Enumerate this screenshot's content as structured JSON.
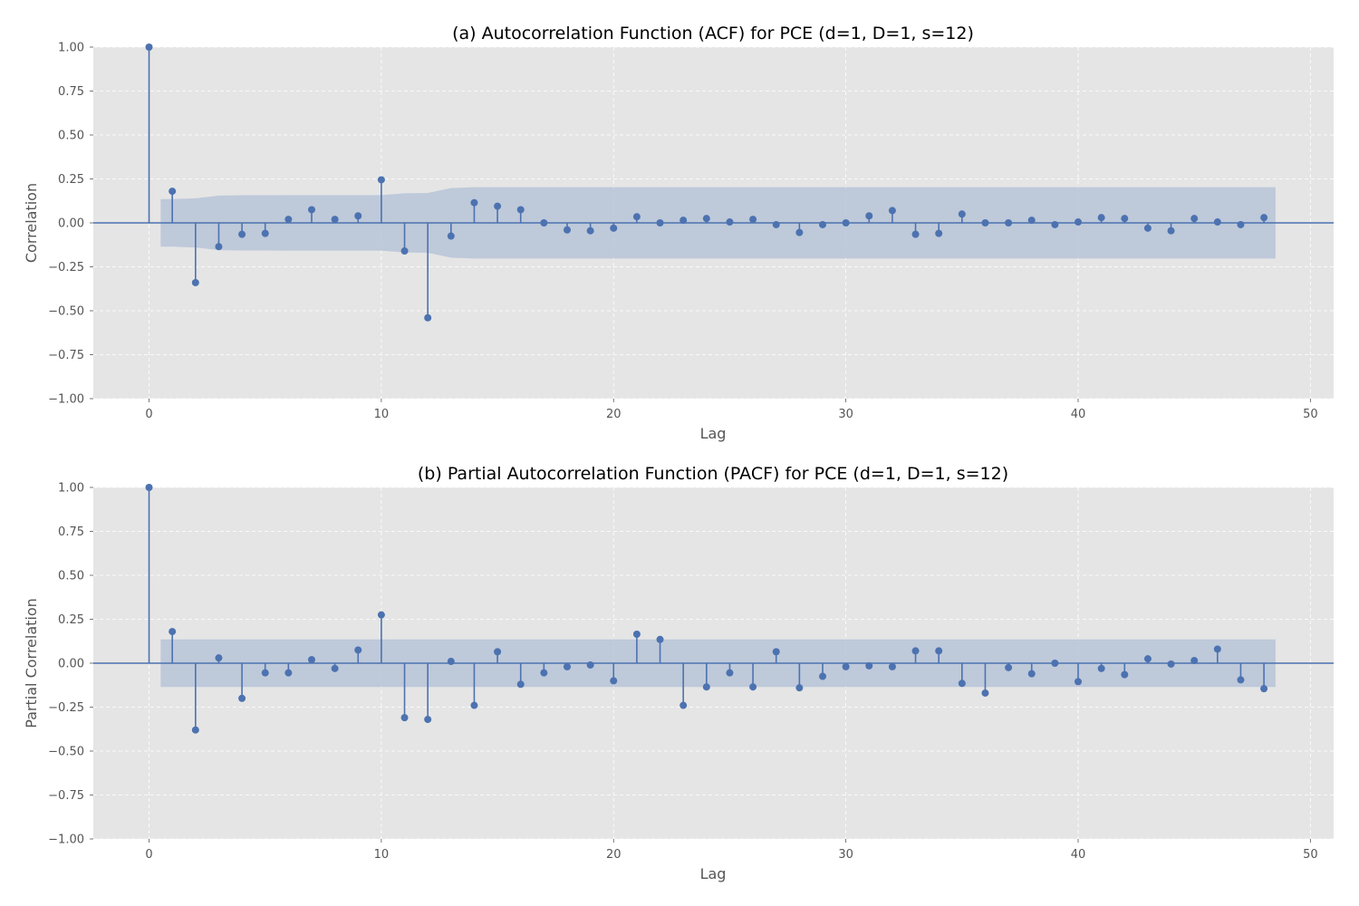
{
  "colors": {
    "plot_background": "#e5e5e5",
    "stem": "#4c72b0",
    "confidence_band": "#b0bfd6",
    "grid": "#ffffff"
  },
  "chart_data": [
    {
      "type": "stem",
      "title": "(a) Autocorrelation Function (ACF) for PCE (d=1, D=1, s=12)",
      "xlabel": "Lag",
      "ylabel": "Correlation",
      "xlim": [
        -2.4,
        51
      ],
      "ylim": [
        -1.0,
        1.0
      ],
      "grid": true,
      "xticks": [
        0,
        10,
        20,
        30,
        40,
        50
      ],
      "xtick_labels": [
        "0",
        "10",
        "20",
        "30",
        "40",
        "50"
      ],
      "yticks": [
        1.0,
        0.75,
        0.5,
        0.25,
        0.0,
        -0.25,
        -0.5,
        -0.75,
        -1.0
      ],
      "ytick_labels": [
        "1.00",
        "0.75",
        "0.50",
        "0.25",
        "0.00",
        "−0.25",
        "−0.50",
        "−0.75",
        "−1.00"
      ],
      "lags": [
        0,
        1,
        2,
        3,
        4,
        5,
        6,
        7,
        8,
        9,
        10,
        11,
        12,
        13,
        14,
        15,
        16,
        17,
        18,
        19,
        20,
        21,
        22,
        23,
        24,
        25,
        26,
        27,
        28,
        29,
        30,
        31,
        32,
        33,
        34,
        35,
        36,
        37,
        38,
        39,
        40,
        41,
        42,
        43,
        44,
        45,
        46,
        47,
        48
      ],
      "values": [
        1.0,
        0.18,
        -0.34,
        -0.135,
        -0.065,
        -0.06,
        0.02,
        0.075,
        0.02,
        0.04,
        0.245,
        -0.16,
        -0.54,
        -0.075,
        0.115,
        0.095,
        0.075,
        0.0,
        -0.04,
        -0.045,
        -0.03,
        0.035,
        0.0,
        0.015,
        0.025,
        0.005,
        0.02,
        -0.01,
        -0.055,
        -0.01,
        0.0,
        0.04,
        0.07,
        -0.065,
        -0.06,
        0.05,
        0.0,
        0.0,
        0.015,
        -0.01,
        0.005,
        0.03,
        0.025,
        -0.03,
        -0.045,
        0.025,
        0.005,
        -0.01,
        0.03
      ],
      "confidence_band": {
        "lags": [
          0.5,
          1,
          2,
          3,
          4,
          5,
          6,
          7,
          8,
          9,
          10,
          11,
          12,
          13,
          14,
          15,
          16,
          17,
          18,
          19,
          20,
          21,
          22,
          23,
          24,
          25,
          26,
          27,
          28,
          29,
          30,
          31,
          32,
          33,
          34,
          35,
          36,
          37,
          38,
          39,
          40,
          41,
          42,
          43,
          44,
          45,
          46,
          47,
          48,
          48.5
        ],
        "upper": [
          0.135,
          0.135,
          0.14,
          0.155,
          0.157,
          0.157,
          0.158,
          0.158,
          0.158,
          0.158,
          0.158,
          0.168,
          0.17,
          0.198,
          0.203,
          0.203,
          0.203,
          0.203,
          0.203,
          0.203,
          0.203,
          0.203,
          0.203,
          0.203,
          0.203,
          0.203,
          0.203,
          0.203,
          0.203,
          0.203,
          0.203,
          0.203,
          0.203,
          0.203,
          0.203,
          0.203,
          0.203,
          0.203,
          0.203,
          0.203,
          0.203,
          0.203,
          0.203,
          0.203,
          0.203,
          0.203,
          0.203,
          0.203,
          0.203,
          0.203
        ]
      }
    },
    {
      "type": "stem",
      "title": "(b) Partial Autocorrelation Function (PACF) for PCE (d=1, D=1, s=12)",
      "xlabel": "Lag",
      "ylabel": "Partial Correlation",
      "xlim": [
        -2.4,
        51
      ],
      "ylim": [
        -1.0,
        1.0
      ],
      "grid": true,
      "xticks": [
        0,
        10,
        20,
        30,
        40,
        50
      ],
      "xtick_labels": [
        "0",
        "10",
        "20",
        "30",
        "40",
        "50"
      ],
      "yticks": [
        1.0,
        0.75,
        0.5,
        0.25,
        0.0,
        -0.25,
        -0.5,
        -0.75,
        -1.0
      ],
      "ytick_labels": [
        "1.00",
        "0.75",
        "0.50",
        "0.25",
        "0.00",
        "−0.25",
        "−0.50",
        "−0.75",
        "−1.00"
      ],
      "lags": [
        0,
        1,
        2,
        3,
        4,
        5,
        6,
        7,
        8,
        9,
        10,
        11,
        12,
        13,
        14,
        15,
        16,
        17,
        18,
        19,
        20,
        21,
        22,
        23,
        24,
        25,
        26,
        27,
        28,
        29,
        30,
        31,
        32,
        33,
        34,
        35,
        36,
        37,
        38,
        39,
        40,
        41,
        42,
        43,
        44,
        45,
        46,
        47,
        48
      ],
      "values": [
        1.0,
        0.18,
        -0.38,
        0.03,
        -0.2,
        -0.055,
        -0.055,
        0.02,
        -0.03,
        0.075,
        0.275,
        -0.31,
        -0.32,
        0.01,
        -0.24,
        0.065,
        -0.12,
        -0.055,
        -0.02,
        -0.01,
        -0.1,
        0.165,
        0.135,
        -0.24,
        -0.135,
        -0.055,
        -0.135,
        0.065,
        -0.14,
        -0.075,
        -0.02,
        -0.015,
        -0.02,
        0.07,
        0.07,
        -0.115,
        -0.17,
        -0.025,
        -0.06,
        0.0,
        -0.105,
        -0.03,
        -0.065,
        0.025,
        -0.005,
        0.015,
        0.08,
        -0.095,
        -0.145
      ],
      "confidence_band": {
        "lags": [
          0.5,
          48.5
        ],
        "upper": [
          0.135,
          0.135
        ]
      }
    }
  ]
}
